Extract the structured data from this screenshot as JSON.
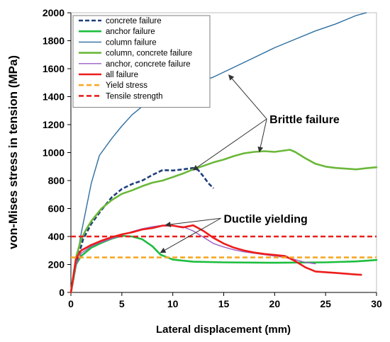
{
  "chart_data": {
    "type": "line",
    "title": "",
    "xlabel": "Lateral displacement (mm)",
    "ylabel": "von-Mises stress in tension (MPa)",
    "xlim": [
      0,
      30
    ],
    "ylim": [
      0,
      2000
    ],
    "x_ticks": [
      0,
      5,
      10,
      15,
      20,
      25,
      30
    ],
    "y_ticks": [
      0,
      200,
      400,
      600,
      800,
      1000,
      1200,
      1400,
      1600,
      1800,
      2000
    ],
    "grid": false,
    "legend_position": "top-left",
    "series": [
      {
        "name": "concrete failure",
        "color": "#1f3e7a",
        "style": "dashed",
        "points": [
          [
            0,
            0
          ],
          [
            0.5,
            200
          ],
          [
            1.2,
            380
          ],
          [
            2,
            490
          ],
          [
            3,
            590
          ],
          [
            4,
            680
          ],
          [
            5,
            740
          ],
          [
            6,
            775
          ],
          [
            7,
            800
          ],
          [
            8,
            840
          ],
          [
            9,
            875
          ],
          [
            10,
            872
          ],
          [
            11,
            880
          ],
          [
            12,
            890
          ],
          [
            12.5,
            875
          ],
          [
            13,
            830
          ],
          [
            13.5,
            780
          ],
          [
            14,
            745
          ]
        ]
      },
      {
        "name": "anchor failure",
        "color": "#1dbd3e",
        "style": "solid",
        "points": [
          [
            0,
            0
          ],
          [
            0.5,
            200
          ],
          [
            1,
            260
          ],
          [
            2,
            320
          ],
          [
            3,
            355
          ],
          [
            4,
            385
          ],
          [
            5,
            405
          ],
          [
            6,
            400
          ],
          [
            7,
            380
          ],
          [
            8,
            330
          ],
          [
            8.8,
            270
          ],
          [
            10,
            235
          ],
          [
            12,
            220
          ],
          [
            15,
            215
          ],
          [
            20,
            212
          ],
          [
            25,
            215
          ],
          [
            28,
            222
          ],
          [
            30,
            232
          ]
        ]
      },
      {
        "name": "column failure",
        "color": "#2e6fa0",
        "style": "solid",
        "points": [
          [
            0,
            0
          ],
          [
            1,
            420
          ],
          [
            2,
            780
          ],
          [
            2.8,
            980
          ],
          [
            4,
            1100
          ],
          [
            5,
            1190
          ],
          [
            6,
            1270
          ],
          [
            7,
            1330
          ],
          [
            8,
            1380
          ],
          [
            9,
            1420
          ],
          [
            10,
            1450
          ],
          [
            12,
            1490
          ],
          [
            14,
            1540
          ],
          [
            16,
            1610
          ],
          [
            18,
            1680
          ],
          [
            20,
            1750
          ],
          [
            22,
            1810
          ],
          [
            24,
            1870
          ],
          [
            26,
            1920
          ],
          [
            28,
            1980
          ],
          [
            29,
            2000
          ]
        ]
      },
      {
        "name": "column, concrete failure",
        "color": "#6ab839",
        "style": "solid",
        "points": [
          [
            0,
            0
          ],
          [
            0.5,
            250
          ],
          [
            1,
            380
          ],
          [
            1.5,
            450
          ],
          [
            2,
            510
          ],
          [
            3,
            600
          ],
          [
            4,
            660
          ],
          [
            5,
            705
          ],
          [
            6,
            730
          ],
          [
            7,
            760
          ],
          [
            8,
            785
          ],
          [
            9,
            800
          ],
          [
            10,
            825
          ],
          [
            11,
            850
          ],
          [
            12,
            880
          ],
          [
            13,
            905
          ],
          [
            14,
            930
          ],
          [
            15,
            950
          ],
          [
            16,
            975
          ],
          [
            17,
            995
          ],
          [
            18,
            1005
          ],
          [
            19,
            1010
          ],
          [
            20,
            1005
          ],
          [
            21,
            1015
          ],
          [
            21.5,
            1020
          ],
          [
            22,
            1005
          ],
          [
            23,
            960
          ],
          [
            24,
            920
          ],
          [
            25,
            900
          ],
          [
            26,
            890
          ],
          [
            27,
            885
          ],
          [
            28,
            880
          ],
          [
            29,
            888
          ],
          [
            30,
            895
          ]
        ]
      },
      {
        "name": "anchor, concrete failure",
        "color": "#9a5fc7",
        "style": "solid",
        "points": [
          [
            0,
            0
          ],
          [
            0.5,
            200
          ],
          [
            1,
            280
          ],
          [
            2,
            330
          ],
          [
            3,
            360
          ],
          [
            4,
            385
          ],
          [
            5,
            410
          ],
          [
            6,
            435
          ],
          [
            7,
            455
          ],
          [
            8,
            470
          ],
          [
            9,
            480
          ],
          [
            10,
            478
          ],
          [
            11,
            470
          ],
          [
            12,
            440
          ],
          [
            13,
            395
          ],
          [
            14,
            350
          ],
          [
            15,
            325
          ],
          [
            16,
            305
          ],
          [
            17,
            290
          ],
          [
            18,
            280
          ],
          [
            19,
            270
          ],
          [
            20,
            260
          ],
          [
            21,
            250
          ],
          [
            22,
            235
          ],
          [
            23,
            215
          ],
          [
            24,
            205
          ]
        ]
      },
      {
        "name": "all failure",
        "color": "#ee1c1c",
        "style": "solid",
        "points": [
          [
            0,
            0
          ],
          [
            0.5,
            240
          ],
          [
            1,
            300
          ],
          [
            2,
            340
          ],
          [
            3,
            370
          ],
          [
            4,
            395
          ],
          [
            5,
            415
          ],
          [
            6,
            430
          ],
          [
            7,
            450
          ],
          [
            8,
            460
          ],
          [
            9,
            478
          ],
          [
            10,
            478
          ],
          [
            11,
            465
          ],
          [
            12,
            480
          ],
          [
            13,
            440
          ],
          [
            14,
            390
          ],
          [
            15,
            350
          ],
          [
            16,
            320
          ],
          [
            17,
            300
          ],
          [
            18,
            285
          ],
          [
            19,
            275
          ],
          [
            20,
            268
          ],
          [
            21,
            260
          ],
          [
            22,
            225
          ],
          [
            23,
            180
          ],
          [
            24,
            150
          ],
          [
            26,
            140
          ],
          [
            28,
            128
          ],
          [
            28.5,
            126
          ]
        ]
      },
      {
        "name": "Yield stress",
        "color": "#f7a825",
        "style": "dashed",
        "points": [
          [
            0,
            250
          ],
          [
            30,
            250
          ]
        ]
      },
      {
        "name": "Tensile strength",
        "color": "#e8201c",
        "style": "dashed",
        "points": [
          [
            0,
            400
          ],
          [
            30,
            400
          ]
        ]
      }
    ],
    "annotations": [
      {
        "text": "Brittle failure",
        "text_at": [
          19.5,
          1210
        ],
        "arrows_to": [
          [
            12,
            875
          ],
          [
            18.5,
            1005
          ],
          [
            15.5,
            1555
          ]
        ]
      },
      {
        "text": "Ductile yielding",
        "text_at": [
          15,
          500
        ],
        "arrows_to": [
          [
            8.8,
            285
          ],
          [
            9.3,
            482
          ]
        ]
      }
    ]
  }
}
